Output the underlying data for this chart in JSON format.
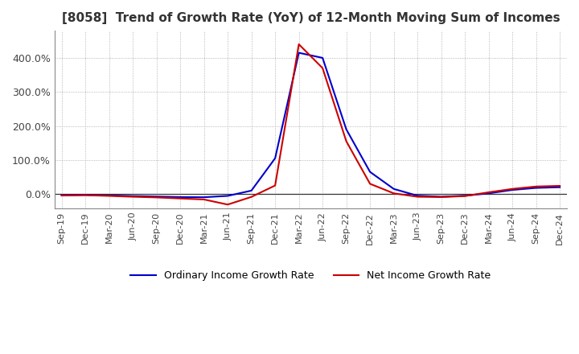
{
  "title": "[8058]  Trend of Growth Rate (YoY) of 12-Month Moving Sum of Incomes",
  "title_fontsize": 11,
  "background_color": "#ffffff",
  "plot_bg_color": "#ffffff",
  "grid_color": "#999999",
  "legend": [
    "Ordinary Income Growth Rate",
    "Net Income Growth Rate"
  ],
  "line_colors": [
    "#0000cc",
    "#cc0000"
  ],
  "x_labels": [
    "Sep-19",
    "Dec-19",
    "Mar-20",
    "Jun-20",
    "Sep-20",
    "Dec-20",
    "Mar-21",
    "Jun-21",
    "Sep-21",
    "Dec-21",
    "Mar-22",
    "Jun-22",
    "Sep-22",
    "Dec-22",
    "Mar-23",
    "Jun-23",
    "Sep-23",
    "Dec-23",
    "Mar-24",
    "Jun-24",
    "Sep-24",
    "Dec-24"
  ],
  "ordinary_income_growth": [
    -0.03,
    -0.025,
    -0.04,
    -0.06,
    -0.075,
    -0.09,
    -0.095,
    -0.055,
    0.1,
    1.05,
    4.15,
    4.0,
    1.9,
    0.65,
    0.15,
    -0.05,
    -0.08,
    -0.05,
    0.02,
    0.12,
    0.18,
    0.2
  ],
  "net_income_growth": [
    -0.045,
    -0.035,
    -0.055,
    -0.08,
    -0.1,
    -0.13,
    -0.16,
    -0.31,
    -0.085,
    0.25,
    4.4,
    3.7,
    1.55,
    0.3,
    0.02,
    -0.08,
    -0.09,
    -0.06,
    0.05,
    0.15,
    0.22,
    0.24
  ],
  "ylim": [
    -0.42,
    4.8
  ],
  "yticks": [
    0.0,
    1.0,
    2.0,
    3.0,
    4.0
  ],
  "ytick_labels": [
    "0.0%",
    "100.0%",
    "200.0%",
    "300.0%",
    "400.0%"
  ]
}
